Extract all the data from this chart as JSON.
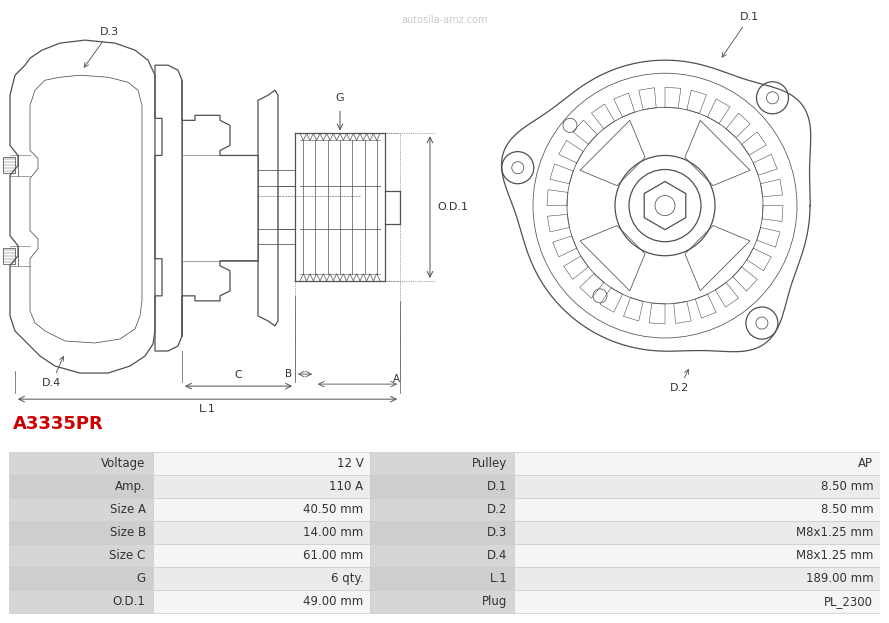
{
  "title": "A3335PR",
  "title_color": "#cc0000",
  "bg_color": "#ffffff",
  "table_rows": [
    [
      "Voltage",
      "12 V",
      "Pulley",
      "AP"
    ],
    [
      "Amp.",
      "110 A",
      "D.1",
      "8.50 mm"
    ],
    [
      "Size A",
      "40.50 mm",
      "D.2",
      "8.50 mm"
    ],
    [
      "Size B",
      "14.00 mm",
      "D.3",
      "M8x1.25 mm"
    ],
    [
      "Size C",
      "61.00 mm",
      "D.4",
      "M8x1.25 mm"
    ],
    [
      "G",
      "6 qty.",
      "L.1",
      "189.00 mm"
    ],
    [
      "O.D.1",
      "49.00 mm",
      "Plug",
      "PL_2300"
    ]
  ],
  "line_color": "#505050",
  "dim_color": "#505050",
  "table_text_color": "#333333",
  "border_color": "#cccccc",
  "watermark": "autosila-amz.com",
  "watermark_color": "#bbbbbb"
}
